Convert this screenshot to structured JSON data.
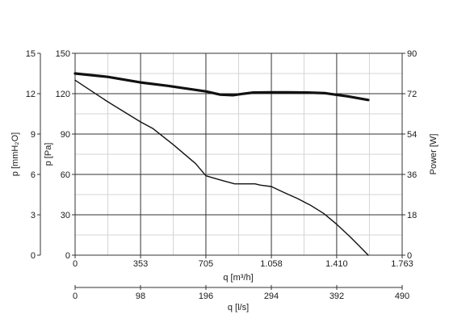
{
  "chart_data": {
    "type": "line",
    "axes": {
      "x_primary": {
        "label": "q [m³/h]",
        "range": [
          0,
          1763
        ],
        "ticks": [
          0,
          353,
          705,
          1058,
          1410,
          1763
        ],
        "tick_labels": [
          "0",
          "353",
          "705",
          "1.058",
          "1.410",
          "1.763"
        ]
      },
      "x_secondary": {
        "label": "q [l/s]",
        "range": [
          0,
          490
        ],
        "ticks": [
          0,
          98,
          196,
          294,
          392,
          490
        ],
        "tick_labels": [
          "0",
          "98",
          "196",
          "294",
          "392",
          "490"
        ]
      },
      "y_left_outer": {
        "label": "p [mmH₂O]",
        "range": [
          0,
          15
        ],
        "ticks": [
          0,
          3,
          6,
          9,
          12,
          15
        ],
        "tick_labels": [
          "0",
          "3",
          "6",
          "9",
          "12",
          "15"
        ]
      },
      "y_left": {
        "label": "p [Pa]",
        "range": [
          0,
          150
        ],
        "ticks": [
          0,
          30,
          60,
          90,
          120,
          150
        ],
        "tick_labels": [
          "0",
          "30",
          "60",
          "90",
          "120",
          "150"
        ]
      },
      "y_right": {
        "label": "Power [W]",
        "range": [
          0,
          90
        ],
        "ticks": [
          0,
          18,
          36,
          54,
          72,
          90
        ],
        "tick_labels": [
          "0",
          "18",
          "36",
          "54",
          "72",
          "90"
        ]
      }
    },
    "grid": true,
    "series": [
      {
        "key": "pressure",
        "axis": "y_left",
        "color": "#111111",
        "x": [
          0,
          176,
          353,
          420,
          530,
          650,
          705,
          780,
          860,
          970,
          1000,
          1058,
          1120,
          1200,
          1270,
          1340,
          1410,
          1480,
          1530,
          1580
        ],
        "y": [
          130,
          114,
          99,
          94,
          82,
          68,
          59,
          56,
          53,
          53,
          52,
          51,
          47,
          42,
          37,
          31,
          23,
          14,
          7,
          0
        ]
      },
      {
        "key": "power",
        "axis": "y_right",
        "color": "#111111",
        "x": [
          0,
          176,
          353,
          500,
          705,
          780,
          850,
          900,
          960,
          1058,
          1150,
          1250,
          1350,
          1410,
          1470,
          1580
        ],
        "y": [
          81,
          79.5,
          77,
          75.5,
          73,
          71.6,
          71.3,
          71.9,
          72.5,
          72.6,
          72.6,
          72.5,
          72.2,
          71.5,
          70.8,
          69.2
        ]
      }
    ]
  }
}
